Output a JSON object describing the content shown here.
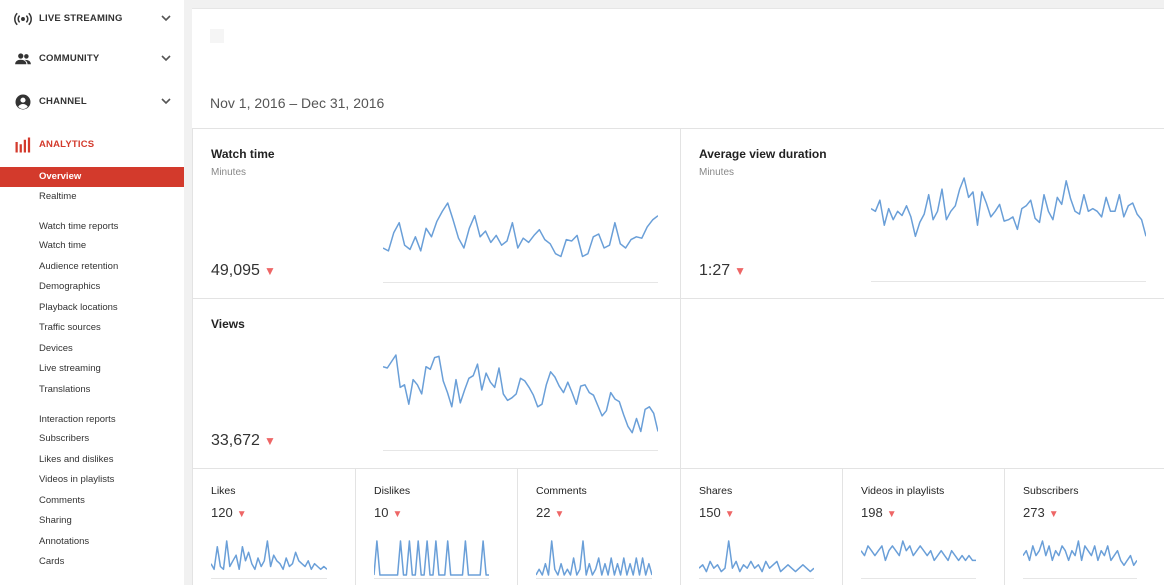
{
  "sidebar": {
    "sections": [
      {
        "label": "LIVE STREAMING",
        "icon": "live-icon"
      },
      {
        "label": "COMMUNITY",
        "icon": "community-icon"
      },
      {
        "label": "CHANNEL",
        "icon": "channel-icon"
      },
      {
        "label": "ANALYTICS",
        "icon": "analytics-icon"
      }
    ],
    "overview": "Overview",
    "realtime": "Realtime",
    "watch_group": "Watch time reports",
    "watch_items": [
      "Watch time",
      "Audience retention",
      "Demographics",
      "Playback locations",
      "Traffic sources",
      "Devices",
      "Live streaming",
      "Translations"
    ],
    "interaction_group": "Interaction reports",
    "interaction_items": [
      "Subscribers",
      "Likes and dislikes",
      "Videos in playlists",
      "Comments",
      "Sharing",
      "Annotations",
      "Cards"
    ]
  },
  "date_range": "Nov 1, 2016 – Dec 31, 2016",
  "watch_time": {
    "title": "Watch time",
    "unit": "Minutes",
    "value": "49,095",
    "trend": "▼"
  },
  "avg_view_duration": {
    "title": "Average view duration",
    "unit": "Minutes",
    "value": "1:27",
    "trend": "▼"
  },
  "views": {
    "title": "Views",
    "value": "33,672",
    "trend": "▼"
  },
  "metrics": [
    {
      "title": "Likes",
      "value": "120",
      "trend": "▼"
    },
    {
      "title": "Dislikes",
      "value": "10",
      "trend": "▼"
    },
    {
      "title": "Comments",
      "value": "22",
      "trend": "▼"
    },
    {
      "title": "Shares",
      "value": "150",
      "trend": "▼"
    },
    {
      "title": "Videos in playlists",
      "value": "198",
      "trend": "▼"
    },
    {
      "title": "Subscribers",
      "value": "273",
      "trend": "▼"
    }
  ],
  "colors": {
    "accent": "#d33a2c",
    "line": "#6a9fd8",
    "trend_down": "#e66666"
  },
  "chart_data": [
    {
      "type": "line",
      "series": [
        {
          "values": [
            22,
            20,
            33,
            40,
            24,
            21,
            30,
            20,
            36,
            30,
            41,
            48,
            54,
            42,
            29,
            22,
            36,
            45,
            30,
            34,
            26,
            31,
            24,
            27,
            40,
            22,
            29,
            26,
            31,
            35,
            28,
            25,
            18,
            16,
            28,
            27,
            31,
            16,
            18,
            30,
            32,
            22,
            24,
            40,
            25,
            22,
            28,
            30,
            29,
            37,
            42,
            45
          ]
        }
      ]
    },
    {
      "type": "line",
      "series": [
        {
          "values": [
            50,
            48,
            56,
            38,
            50,
            42,
            48,
            45,
            52,
            44,
            30,
            40,
            46,
            60,
            42,
            48,
            64,
            42,
            48,
            52,
            64,
            72,
            58,
            62,
            38,
            62,
            54,
            44,
            48,
            53,
            41,
            42,
            44,
            35,
            50,
            52,
            56,
            43,
            40,
            60,
            48,
            42,
            58,
            53,
            70,
            57,
            48,
            46,
            60,
            48,
            50,
            48,
            44,
            58,
            48,
            48,
            60,
            44,
            52,
            54,
            46,
            42,
            30
          ]
        }
      ]
    },
    {
      "type": "line",
      "series": [
        {
          "values": [
            62,
            61,
            66,
            71,
            46,
            48,
            33,
            52,
            48,
            41,
            62,
            60,
            69,
            70,
            51,
            42,
            31,
            52,
            34,
            44,
            53,
            55,
            64,
            44,
            57,
            50,
            46,
            61,
            41,
            36,
            38,
            41,
            53,
            51,
            46,
            40,
            31,
            33,
            48,
            58,
            54,
            47,
            42,
            50,
            42,
            33,
            47,
            48,
            42,
            40,
            32,
            24,
            28,
            42,
            37,
            35,
            25,
            16,
            11,
            22,
            12,
            29,
            31,
            26,
            12
          ]
        }
      ]
    },
    {
      "type": "line",
      "series": [
        {
          "values": [
            4,
            2,
            10,
            3,
            2,
            12,
            3,
            5,
            7,
            2,
            10,
            5,
            8,
            4,
            2,
            6,
            3,
            5,
            12,
            3,
            7,
            5,
            4,
            2,
            6,
            3,
            4,
            8,
            5,
            4,
            3,
            5,
            2,
            4,
            3,
            2,
            3,
            2
          ]
        }
      ]
    },
    {
      "type": "line",
      "series": [
        {
          "values": [
            0,
            10,
            0,
            0,
            0,
            0,
            0,
            0,
            0,
            10,
            0,
            0,
            10,
            0,
            0,
            10,
            0,
            0,
            10,
            0,
            0,
            10,
            0,
            0,
            0,
            10,
            0,
            0,
            0,
            0,
            0,
            10,
            0,
            0,
            0,
            0,
            0,
            10,
            0,
            0
          ]
        }
      ]
    },
    {
      "type": "line",
      "series": [
        {
          "values": [
            0,
            1,
            0,
            2,
            0,
            6,
            1,
            0,
            2,
            0,
            1,
            0,
            3,
            0,
            1,
            6,
            0,
            2,
            0,
            1,
            3,
            0,
            2,
            0,
            3,
            0,
            2,
            0,
            3,
            0,
            2,
            0,
            3,
            0,
            3,
            0,
            2,
            0
          ]
        }
      ]
    },
    {
      "type": "line",
      "series": [
        {
          "values": [
            2,
            3,
            1,
            4,
            2,
            3,
            1,
            2,
            10,
            2,
            4,
            1,
            3,
            2,
            4,
            2,
            3,
            1,
            4,
            2,
            3,
            4,
            1,
            2,
            3,
            2,
            1,
            2,
            3,
            2,
            1,
            2
          ]
        }
      ]
    },
    {
      "type": "line",
      "series": [
        {
          "values": [
            5,
            4,
            6,
            5,
            4,
            5,
            6,
            3,
            5,
            6,
            5,
            4,
            7,
            5,
            6,
            4,
            5,
            6,
            5,
            4,
            5,
            3,
            4,
            5,
            4,
            3,
            5,
            4,
            3,
            4,
            3,
            4,
            3,
            3
          ]
        }
      ]
    },
    {
      "type": "line",
      "series": [
        {
          "values": [
            4,
            5,
            3,
            6,
            4,
            5,
            7,
            4,
            6,
            3,
            5,
            4,
            6,
            5,
            3,
            5,
            4,
            7,
            3,
            6,
            5,
            4,
            6,
            3,
            5,
            4,
            6,
            3,
            4,
            5,
            3,
            2,
            3,
            4,
            2,
            3
          ]
        }
      ]
    }
  ]
}
